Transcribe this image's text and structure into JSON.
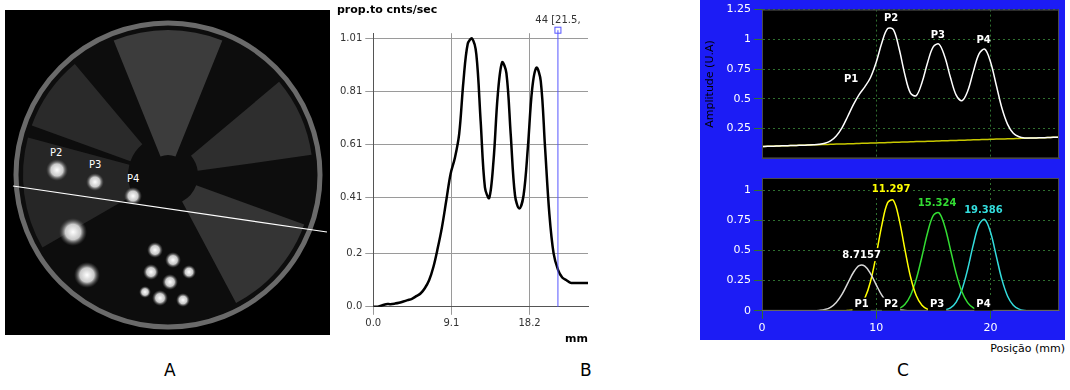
{
  "panel_labels": [
    "A",
    "B",
    "C"
  ],
  "image": {
    "spot_labels": [
      "P2",
      "P3",
      "P4"
    ]
  },
  "chart_data": [
    {
      "type": "line",
      "y_label": "prop.to cnts/sec",
      "x_label": "mm",
      "x": [
        0,
        0.5,
        1,
        1.5,
        2,
        2.5,
        3,
        3.5,
        4,
        4.5,
        5,
        5.5,
        6,
        6.5,
        7,
        7.5,
        8,
        8.5,
        9,
        9.5,
        10,
        10.5,
        11,
        11.5,
        12,
        12.5,
        13,
        13.5,
        14,
        14.5,
        15,
        15.5,
        16,
        16.5,
        17,
        17.5,
        18,
        18.5,
        19,
        19.5,
        20,
        20.5,
        21,
        21.5,
        22,
        22.5,
        23,
        23.5,
        24,
        24.5,
        25
      ],
      "values": [
        0,
        0,
        0.005,
        0.01,
        0.01,
        0.012,
        0.015,
        0.02,
        0.025,
        0.03,
        0.04,
        0.05,
        0.07,
        0.1,
        0.15,
        0.22,
        0.3,
        0.4,
        0.5,
        0.56,
        0.65,
        0.85,
        0.99,
        1.01,
        0.95,
        0.7,
        0.45,
        0.41,
        0.55,
        0.8,
        0.92,
        0.88,
        0.65,
        0.42,
        0.37,
        0.42,
        0.6,
        0.82,
        0.9,
        0.85,
        0.6,
        0.35,
        0.2,
        0.14,
        0.11,
        0.1,
        0.09,
        0.09,
        0.09,
        0.09,
        0.09
      ],
      "color": "#000000",
      "xlim": [
        0,
        25
      ],
      "ylim": [
        0,
        1.03
      ],
      "xticks": [
        {
          "value": 0,
          "label": "0.0"
        },
        9.1,
        18.2
      ],
      "yticks": [
        {
          "value": 0,
          "label": "0.0"
        },
        0.2,
        0.41,
        0.61,
        0.81,
        1.01
      ],
      "grid": true,
      "annotations": [
        {
          "text": "44 [21.5,",
          "x": 21.5,
          "color": "#5555ff"
        }
      ]
    },
    {
      "type": "line",
      "y_label": "Amplitude (U.A)",
      "x": [
        0,
        0.5,
        1,
        1.5,
        2,
        2.5,
        3,
        3.5,
        4,
        4.5,
        5,
        5.5,
        6,
        6.5,
        7,
        7.5,
        8,
        8.5,
        9,
        9.5,
        10,
        10.5,
        11,
        11.5,
        12,
        12.5,
        13,
        13.5,
        14,
        14.5,
        15,
        15.5,
        16,
        16.5,
        17,
        17.5,
        18,
        18.5,
        19,
        19.5,
        20,
        20.5,
        21,
        21.5,
        22,
        22.5,
        23,
        23.5,
        24,
        24.5,
        25,
        25.5,
        26
      ],
      "series": [
        {
          "color": "#ffffff",
          "values": [
            0.1,
            0.102,
            0.103,
            0.105,
            0.106,
            0.108,
            0.109,
            0.111,
            0.112,
            0.114,
            0.118,
            0.127,
            0.147,
            0.189,
            0.257,
            0.352,
            0.451,
            0.536,
            0.601,
            0.68,
            0.808,
            0.973,
            1.091,
            1.081,
            0.923,
            0.706,
            0.548,
            0.527,
            0.636,
            0.806,
            0.939,
            0.959,
            0.853,
            0.68,
            0.531,
            0.484,
            0.564,
            0.729,
            0.878,
            0.917,
            0.812,
            0.619,
            0.423,
            0.286,
            0.212,
            0.182,
            0.172,
            0.172,
            0.172,
            0.174,
            0.175,
            0.177,
            0.178
          ]
        },
        {
          "color": "#c8c800",
          "values": [
            0.1,
            0.102,
            0.103,
            0.105,
            0.106,
            0.108,
            0.109,
            0.111,
            0.112,
            0.114,
            0.115,
            0.117,
            0.118,
            0.12,
            0.121,
            0.123,
            0.124,
            0.126,
            0.127,
            0.129,
            0.13,
            0.132,
            0.133,
            0.135,
            0.136,
            0.138,
            0.139,
            0.141,
            0.142,
            0.144,
            0.145,
            0.147,
            0.148,
            0.15,
            0.151,
            0.153,
            0.154,
            0.156,
            0.157,
            0.159,
            0.16,
            0.162,
            0.163,
            0.165,
            0.166,
            0.168,
            0.169,
            0.171,
            0.172,
            0.174,
            0.175,
            0.177,
            0.178
          ]
        }
      ],
      "xlim": [
        0,
        26
      ],
      "ylim": [
        0,
        1.25
      ],
      "xticks": [
        0,
        10,
        20
      ],
      "yticks": [
        0.25,
        0.5,
        0.75,
        1,
        1.25
      ],
      "grid": true,
      "tick_labels": "y",
      "annotations": [
        {
          "text": "P1",
          "x": 7.8,
          "y": 0.62,
          "color": "#ffffff"
        },
        {
          "text": "P2",
          "x": 11.3,
          "y": 1.13,
          "color": "#ffffff"
        },
        {
          "text": "P3",
          "x": 15.4,
          "y": 0.99,
          "color": "#ffffff"
        },
        {
          "text": "P4",
          "x": 19.4,
          "y": 0.95,
          "color": "#ffffff"
        }
      ]
    },
    {
      "type": "line",
      "x_label": "Posição (mm)",
      "x": [
        0,
        0.5,
        1,
        1.5,
        2,
        2.5,
        3,
        3.5,
        4,
        4.5,
        5,
        5.5,
        6,
        6.5,
        7,
        7.5,
        8,
        8.5,
        9,
        9.5,
        10,
        10.5,
        11,
        11.5,
        12,
        12.5,
        13,
        13.5,
        14,
        14.5,
        15,
        15.5,
        16,
        16.5,
        17,
        17.5,
        18,
        18.5,
        19,
        19.5,
        20,
        20.5,
        21,
        21.5,
        22,
        22.5,
        23,
        23.5,
        24,
        24.5,
        25,
        25.5,
        26
      ],
      "series": [
        {
          "name": "P1",
          "color": "#d8d8d8",
          "values": [
            0,
            0,
            0,
            0,
            0,
            0,
            0,
            0,
            0,
            0,
            0.003,
            0.01,
            0.029,
            0.069,
            0.136,
            0.227,
            0.317,
            0.374,
            0.37,
            0.308,
            0.215,
            0.127,
            0.062,
            0.026,
            0.009,
            0.003,
            0,
            0,
            0,
            0,
            0,
            0,
            0,
            0,
            0,
            0,
            0,
            0,
            0,
            0,
            0,
            0,
            0,
            0,
            0,
            0,
            0,
            0,
            0,
            0,
            0,
            0,
            0
          ]
        },
        {
          "name": "P2",
          "color": "#ffff00",
          "values": [
            0,
            0,
            0,
            0,
            0,
            0,
            0,
            0,
            0,
            0,
            0,
            0,
            0,
            0,
            0,
            0.002,
            0.01,
            0.036,
            0.104,
            0.243,
            0.463,
            0.714,
            0.896,
            0.915,
            0.76,
            0.513,
            0.282,
            0.126,
            0.046,
            0.013,
            0.003,
            0,
            0,
            0,
            0,
            0,
            0,
            0,
            0,
            0,
            0,
            0,
            0,
            0,
            0,
            0,
            0,
            0,
            0,
            0,
            0,
            0,
            0
          ]
        },
        {
          "name": "P3",
          "color": "#33dd33",
          "values": [
            0,
            0,
            0,
            0,
            0,
            0,
            0,
            0,
            0,
            0,
            0,
            0,
            0,
            0,
            0,
            0,
            0,
            0,
            0,
            0,
            0,
            0,
            0,
            0.005,
            0.018,
            0.052,
            0.127,
            0.26,
            0.448,
            0.649,
            0.791,
            0.811,
            0.698,
            0.506,
            0.308,
            0.157,
            0.068,
            0.025,
            0.007,
            0.002,
            0,
            0,
            0,
            0,
            0,
            0,
            0,
            0,
            0,
            0,
            0,
            0,
            0
          ]
        },
        {
          "name": "P4",
          "color": "#33dddd",
          "values": [
            0,
            0,
            0,
            0,
            0,
            0,
            0,
            0,
            0,
            0,
            0,
            0,
            0,
            0,
            0,
            0,
            0,
            0,
            0,
            0,
            0,
            0,
            0,
            0,
            0,
            0,
            0,
            0,
            0,
            0,
            0,
            0.001,
            0.007,
            0.024,
            0.072,
            0.174,
            0.342,
            0.548,
            0.714,
            0.756,
            0.652,
            0.457,
            0.26,
            0.121,
            0.046,
            0.014,
            0.003,
            0.001,
            0,
            0,
            0,
            0,
            0
          ]
        }
      ],
      "xlim": [
        0,
        26
      ],
      "ylim": [
        0,
        1.1
      ],
      "xticks": [
        0,
        10,
        20
      ],
      "yticks": [
        0,
        0.25,
        0.5,
        0.75,
        1
      ],
      "grid": true,
      "annotations": [
        {
          "text": "8.7157",
          "x": 8.7157,
          "y": 0.42,
          "color": "#ffffff"
        },
        {
          "text": "11.297",
          "x": 11.297,
          "y": 0.96,
          "color": "#ffff00"
        },
        {
          "text": "15.324",
          "x": 15.324,
          "y": 0.85,
          "color": "#33dd33"
        },
        {
          "text": "19.386",
          "x": 19.386,
          "y": 0.79,
          "color": "#33dddd"
        },
        {
          "text": "P1",
          "x": 8.7157,
          "y": 0.01,
          "color": "#ffffff"
        },
        {
          "text": "P2",
          "x": 11.297,
          "y": 0.01,
          "color": "#ffffff"
        },
        {
          "text": "P3",
          "x": 15.324,
          "y": 0.01,
          "color": "#ffffff"
        },
        {
          "text": "P4",
          "x": 19.386,
          "y": 0.01,
          "color": "#ffffff"
        }
      ]
    }
  ]
}
